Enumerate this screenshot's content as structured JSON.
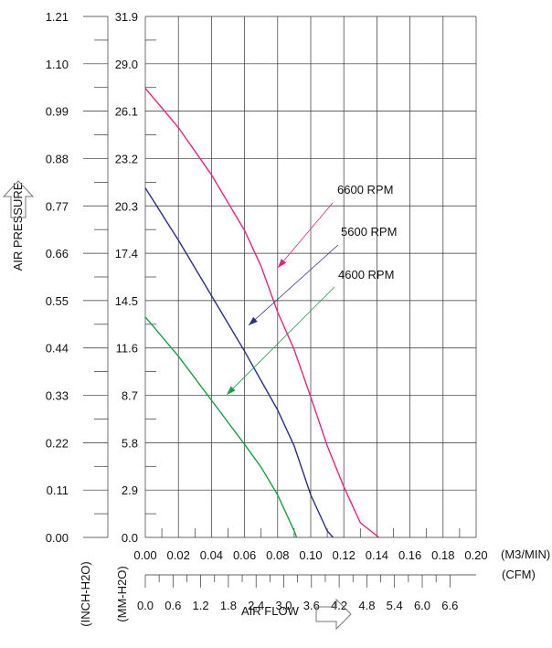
{
  "chart_data": {
    "type": "line",
    "title": "",
    "xlabel": "AIR FLOW",
    "ylabel": "AIR PRESSURE",
    "x_unit_primary": "(M3/MIN)",
    "x_unit_secondary": "(CFM)",
    "y_unit_primary": "(MM-H2O)",
    "y_unit_secondary": "(INCH-H2O)",
    "x_ticks_m3min": [
      "0.00",
      "0.02",
      "0.04",
      "0.06",
      "0.08",
      "0.10",
      "0.12",
      "0.14",
      "0.16",
      "0.18",
      "0.20"
    ],
    "x_ticks_cfm": [
      "0.0",
      "0.6",
      "1.2",
      "1.8",
      "2.4",
      "3.0",
      "3.6",
      "4.2",
      "4.8",
      "5.4",
      "6.0",
      "6.6"
    ],
    "y_ticks_mmh2o": [
      "0.0",
      "2.9",
      "5.8",
      "8.7",
      "11.6",
      "14.5",
      "17.4",
      "20.3",
      "23.2",
      "26.1",
      "29.0",
      "31.9"
    ],
    "y_ticks_inchh2o": [
      "0.00",
      "0.11",
      "0.22",
      "0.33",
      "0.44",
      "0.55",
      "0.66",
      "0.77",
      "0.88",
      "0.99",
      "1.10",
      "1.21"
    ],
    "xlim": [
      0,
      0.2
    ],
    "ylim": [
      0,
      31.9
    ],
    "grid": true,
    "series": [
      {
        "name": "6600 RPM",
        "color": "#e5247e",
        "points": [
          [
            0,
            27.5
          ],
          [
            0.02,
            25.1
          ],
          [
            0.04,
            22.2
          ],
          [
            0.06,
            18.8
          ],
          [
            0.07,
            16.6
          ],
          [
            0.08,
            13.8
          ],
          [
            0.09,
            11.5
          ],
          [
            0.1,
            8.6
          ],
          [
            0.11,
            5.6
          ],
          [
            0.12,
            3.1
          ],
          [
            0.13,
            0.9
          ],
          [
            0.1412,
            0
          ]
        ]
      },
      {
        "name": "5600 RPM",
        "color": "#2b2f86",
        "points": [
          [
            0,
            21.4
          ],
          [
            0.02,
            18.2
          ],
          [
            0.04,
            14.8
          ],
          [
            0.06,
            11.4
          ],
          [
            0.07,
            9.6
          ],
          [
            0.08,
            7.8
          ],
          [
            0.09,
            5.6
          ],
          [
            0.1,
            2.6
          ],
          [
            0.11,
            0.4
          ],
          [
            0.1135,
            0
          ]
        ]
      },
      {
        "name": "4600 RPM",
        "color": "#1a9e46",
        "points": [
          [
            0,
            13.5
          ],
          [
            0.02,
            11.1
          ],
          [
            0.04,
            8.4
          ],
          [
            0.06,
            5.7
          ],
          [
            0.07,
            4.3
          ],
          [
            0.08,
            2.6
          ],
          [
            0.09,
            0.4
          ],
          [
            0.0915,
            0
          ]
        ]
      }
    ],
    "legend": "inline labels with arrows to curves"
  }
}
